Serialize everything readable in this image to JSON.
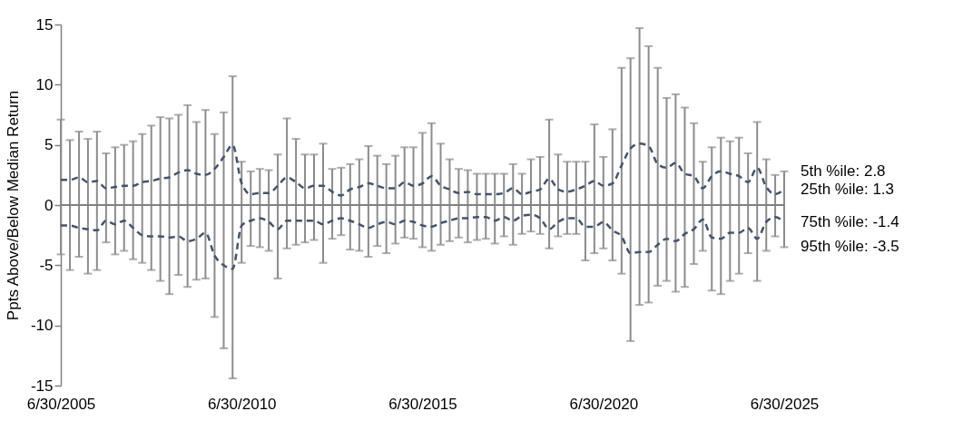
{
  "chart_data": {
    "type": "line",
    "ylabel": "Ppts Above/Below Median Return",
    "x": [
      "2005-06-30",
      "2005-09-30",
      "2005-12-31",
      "2006-03-31",
      "2006-06-30",
      "2006-09-30",
      "2006-12-31",
      "2007-03-31",
      "2007-06-30",
      "2007-09-30",
      "2007-12-31",
      "2008-03-31",
      "2008-06-30",
      "2008-09-30",
      "2008-12-31",
      "2009-03-31",
      "2009-06-30",
      "2009-09-30",
      "2009-12-31",
      "2010-03-31",
      "2010-06-30",
      "2010-09-30",
      "2010-12-31",
      "2011-03-31",
      "2011-06-30",
      "2011-09-30",
      "2011-12-31",
      "2012-03-31",
      "2012-06-30",
      "2012-09-30",
      "2012-12-31",
      "2013-03-31",
      "2013-06-30",
      "2013-09-30",
      "2013-12-31",
      "2014-03-31",
      "2014-06-30",
      "2014-09-30",
      "2014-12-31",
      "2015-03-31",
      "2015-06-30",
      "2015-09-30",
      "2015-12-31",
      "2016-03-31",
      "2016-06-30",
      "2016-09-30",
      "2016-12-31",
      "2017-03-31",
      "2017-06-30",
      "2017-09-30",
      "2017-12-31",
      "2018-03-31",
      "2018-06-30",
      "2018-09-30",
      "2018-12-31",
      "2019-03-31",
      "2019-06-30",
      "2019-09-30",
      "2019-12-31",
      "2020-03-31",
      "2020-06-30",
      "2020-09-30",
      "2020-12-31",
      "2021-03-31",
      "2021-06-30",
      "2021-09-30",
      "2021-12-31",
      "2022-03-31",
      "2022-06-30",
      "2022-09-30",
      "2022-12-31",
      "2023-03-31",
      "2023-06-30",
      "2023-09-30",
      "2023-12-31",
      "2024-03-31",
      "2024-06-30",
      "2024-09-30",
      "2024-12-31",
      "2025-03-31",
      "2025-06-30"
    ],
    "series": [
      {
        "color": "#44546a",
        "line_style": "dashed",
        "marker": "none",
        "values": [
          2.1,
          2.1,
          2.3,
          1.9,
          2.0,
          1.4,
          1.5,
          1.6,
          1.6,
          1.9,
          2.0,
          2.2,
          2.3,
          2.7,
          2.9,
          2.6,
          2.5,
          3.0,
          4.0,
          5.0,
          1.8,
          0.9,
          1.0,
          1.0,
          1.6,
          2.3,
          1.9,
          1.4,
          1.6,
          1.6,
          1.1,
          0.8,
          1.3,
          1.5,
          1.8,
          1.6,
          1.4,
          1.4,
          1.9,
          1.6,
          1.8,
          2.4,
          1.6,
          1.3,
          1.0,
          1.1,
          0.9,
          0.9,
          0.9,
          1.0,
          1.4,
          0.9,
          1.1,
          1.3,
          2.2,
          1.3,
          1.1,
          1.3,
          1.6,
          2.0,
          1.6,
          1.8,
          3.3,
          4.7,
          5.1,
          4.9,
          3.4,
          3.1,
          3.5,
          2.6,
          2.4,
          1.4,
          2.4,
          2.8,
          2.6,
          2.4,
          1.9,
          3.1,
          1.5,
          0.9,
          1.3
        ],
        "errors": [
          [
            -4.1,
            7.1
          ],
          [
            -5.4,
            5.4
          ],
          [
            -4.3,
            6.1
          ],
          [
            -5.7,
            5.5
          ],
          [
            -5.4,
            6.1
          ],
          [
            -3.1,
            4.3
          ],
          [
            -4.1,
            4.8
          ],
          [
            -3.8,
            5.0
          ],
          [
            -4.5,
            5.3
          ],
          [
            -4.8,
            5.9
          ],
          [
            -5.4,
            6.6
          ],
          [
            -6.3,
            7.3
          ],
          [
            -7.4,
            7.2
          ],
          [
            -5.8,
            7.5
          ],
          [
            -6.8,
            8.3
          ],
          [
            -6.2,
            6.9
          ],
          [
            -6.1,
            7.9
          ],
          [
            -9.3,
            5.9
          ],
          [
            -11.9,
            7.7
          ],
          [
            -14.4,
            10.7
          ],
          [
            -4.8,
            3.6
          ],
          [
            -3.4,
            2.8
          ],
          [
            -3.5,
            3.0
          ],
          [
            -3.8,
            2.9
          ],
          [
            -6.1,
            4.2
          ],
          [
            -3.6,
            7.2
          ],
          [
            -3.3,
            5.5
          ],
          [
            -3.1,
            4.2
          ],
          [
            -2.9,
            4.2
          ],
          [
            -4.8,
            5.1
          ],
          [
            -2.8,
            3.0
          ],
          [
            -2.5,
            3.1
          ],
          [
            -3.7,
            3.4
          ],
          [
            -3.8,
            3.8
          ],
          [
            -4.3,
            4.9
          ],
          [
            -3.4,
            4.1
          ],
          [
            -4.0,
            3.4
          ],
          [
            -3.2,
            4.1
          ],
          [
            -2.7,
            4.8
          ],
          [
            -2.8,
            4.8
          ],
          [
            -3.5,
            6.0
          ],
          [
            -3.8,
            6.8
          ],
          [
            -3.3,
            5.1
          ],
          [
            -3.0,
            3.8
          ],
          [
            -2.7,
            3.0
          ],
          [
            -3.1,
            2.9
          ],
          [
            -2.9,
            2.6
          ],
          [
            -2.8,
            2.6
          ],
          [
            -3.2,
            2.6
          ],
          [
            -2.6,
            2.6
          ],
          [
            -3.3,
            3.4
          ],
          [
            -2.4,
            2.6
          ],
          [
            -2.2,
            3.8
          ],
          [
            -2.4,
            4.0
          ],
          [
            -3.6,
            7.1
          ],
          [
            -2.6,
            4.2
          ],
          [
            -2.4,
            3.6
          ],
          [
            -2.4,
            3.6
          ],
          [
            -4.6,
            3.6
          ],
          [
            -4.0,
            6.7
          ],
          [
            -3.6,
            4.0
          ],
          [
            -4.6,
            6.3
          ],
          [
            -5.7,
            11.4
          ],
          [
            -11.3,
            12.2
          ],
          [
            -8.3,
            14.7
          ],
          [
            -8.1,
            13.2
          ],
          [
            -6.7,
            11.4
          ],
          [
            -6.3,
            8.9
          ],
          [
            -7.2,
            9.2
          ],
          [
            -6.8,
            8.1
          ],
          [
            -4.9,
            6.8
          ],
          [
            -3.8,
            3.6
          ],
          [
            -7.1,
            4.8
          ],
          [
            -7.4,
            5.6
          ],
          [
            -6.3,
            5.3
          ],
          [
            -5.7,
            5.6
          ],
          [
            -4.0,
            4.3
          ],
          [
            -6.3,
            6.9
          ],
          [
            -3.8,
            3.8
          ],
          [
            -2.6,
            2.5
          ],
          [
            -3.5,
            2.8
          ]
        ]
      },
      {
        "color": "#44546a",
        "line_style": "dashed",
        "marker": "none",
        "values": [
          -1.7,
          -1.7,
          -1.9,
          -2.0,
          -2.1,
          -1.3,
          -1.6,
          -1.3,
          -1.9,
          -2.5,
          -2.6,
          -2.6,
          -2.7,
          -2.6,
          -3.0,
          -2.8,
          -2.3,
          -4.2,
          -5.0,
          -5.3,
          -1.7,
          -1.3,
          -1.1,
          -1.4,
          -2.0,
          -1.3,
          -1.3,
          -1.3,
          -1.3,
          -1.6,
          -1.3,
          -1.1,
          -1.3,
          -1.6,
          -1.9,
          -1.6,
          -1.4,
          -1.6,
          -1.3,
          -1.4,
          -1.7,
          -1.8,
          -1.5,
          -1.3,
          -1.1,
          -1.1,
          -1.0,
          -1.0,
          -1.3,
          -1.0,
          -1.3,
          -0.9,
          -0.8,
          -1.1,
          -2.0,
          -1.4,
          -1.1,
          -1.1,
          -1.8,
          -1.8,
          -1.4,
          -2.1,
          -2.6,
          -4.0,
          -3.9,
          -3.9,
          -3.3,
          -2.8,
          -3.0,
          -2.4,
          -2.0,
          -1.2,
          -2.7,
          -2.8,
          -2.3,
          -2.3,
          -1.9,
          -2.8,
          -1.4,
          -1.0,
          -1.4
        ]
      }
    ],
    "xlim": [
      "2005-06-30",
      "2025-06-30"
    ],
    "xticks": [
      {
        "value": "2005-06-30",
        "label": "6/30/2005"
      },
      {
        "value": "2010-06-30",
        "label": "6/30/2010"
      },
      {
        "value": "2015-06-30",
        "label": "6/30/2015"
      },
      {
        "value": "2020-06-30",
        "label": "6/30/2020"
      },
      {
        "value": "2025-06-30",
        "label": "6/30/2025"
      }
    ],
    "ylim": [
      -15,
      15
    ],
    "yticks": [
      -15,
      -10,
      -5,
      0,
      5,
      10,
      15
    ],
    "ref_lines": [
      {
        "axis": "y",
        "value": 0,
        "color": "#808080"
      }
    ],
    "annotations": [
      {
        "text": "5th %ile: 2.8",
        "x": "2025-06-30",
        "y": 2.8
      },
      {
        "text": "25th %ile: 1.3",
        "x": "2025-06-30",
        "y": 1.3
      },
      {
        "text": "75th %ile: -1.4",
        "x": "2025-06-30",
        "y": -1.4
      },
      {
        "text": "95th %ile: -3.5",
        "x": "2025-06-30",
        "y": -3.5
      }
    ],
    "grid": false
  }
}
